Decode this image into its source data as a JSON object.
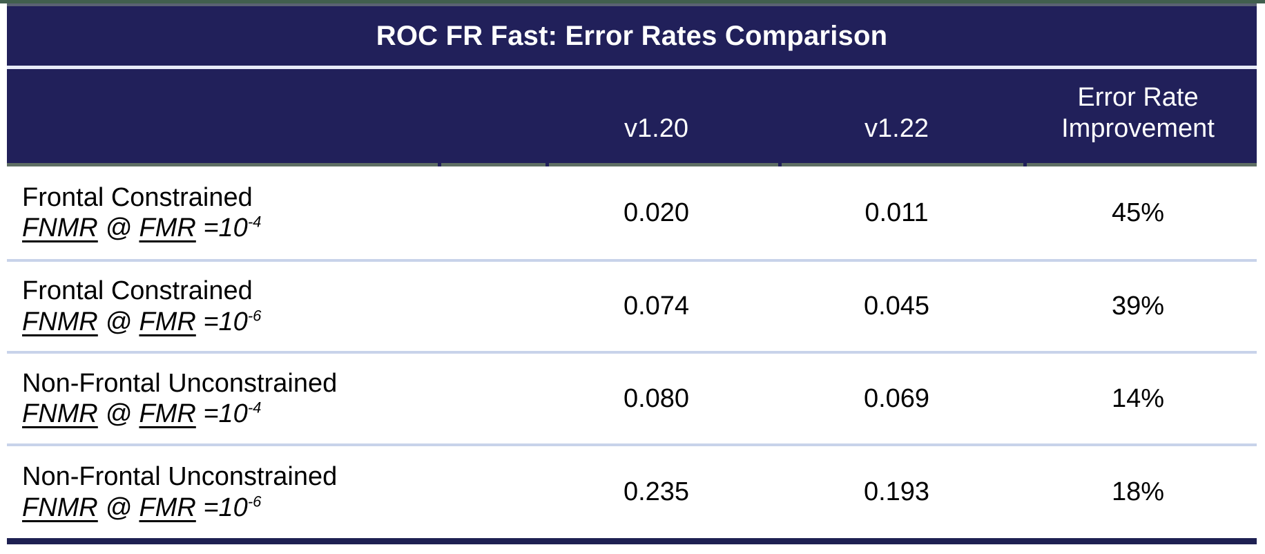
{
  "colors": {
    "header_navy": "#21205A",
    "bottom_bar_navy": "#1E2052",
    "title_separator": "#E7EBF7",
    "row_separator": "#C8D3EA",
    "top_edge_line": "#415F4E",
    "table_top_border": "#5A6273",
    "header_bottom_border": "#5E6E64",
    "header_text": "#FFFFFF",
    "body_text": "#000000",
    "body_background": "#FFFFFF"
  },
  "table": {
    "title": "ROC FR Fast: Error Rates Comparison",
    "columns": [
      {
        "label": "v1.20"
      },
      {
        "label": "v1.22"
      },
      {
        "label": "Error Rate Improvement"
      }
    ],
    "rows": [
      {
        "scenario": "Frontal Constrained",
        "metric": {
          "fnmr": "FNMR",
          "at": "@",
          "fmr": "FMR",
          "equals": "=10",
          "exponent": "-4"
        },
        "v1_20": "0.020",
        "v1_22": "0.011",
        "improvement": "45%"
      },
      {
        "scenario": "Frontal Constrained",
        "metric": {
          "fnmr": "FNMR",
          "at": "@",
          "fmr": "FMR",
          "equals": "=10",
          "exponent": "-6"
        },
        "v1_20": "0.074",
        "v1_22": "0.045",
        "improvement": "39%"
      },
      {
        "scenario": "Non-Frontal Unconstrained",
        "metric": {
          "fnmr": "FNMR",
          "at": "@",
          "fmr": "FMR",
          "equals": "=10",
          "exponent": "-4"
        },
        "v1_20": "0.080",
        "v1_22": "0.069",
        "improvement": "14%"
      },
      {
        "scenario": "Non-Frontal Unconstrained",
        "metric": {
          "fnmr": "FNMR",
          "at": "@",
          "fmr": "FMR",
          "equals": "=10",
          "exponent": "-6"
        },
        "v1_20": "0.235",
        "v1_22": "0.193",
        "improvement": "18%"
      }
    ]
  },
  "chart_data": {
    "type": "table",
    "title": "ROC FR Fast: Error Rates Comparison",
    "categories": [
      "Frontal Constrained FNMR @ FMR =10^-4",
      "Frontal Constrained FNMR @ FMR =10^-6",
      "Non-Frontal Unconstrained FNMR @ FMR =10^-4",
      "Non-Frontal Unconstrained FNMR @ FMR =10^-6"
    ],
    "series": [
      {
        "name": "v1.20",
        "values": [
          0.02,
          0.074,
          0.08,
          0.235
        ]
      },
      {
        "name": "v1.22",
        "values": [
          0.011,
          0.045,
          0.069,
          0.193
        ]
      },
      {
        "name": "Error Rate Improvement",
        "values": [
          "45%",
          "39%",
          "14%",
          "18%"
        ]
      }
    ]
  }
}
